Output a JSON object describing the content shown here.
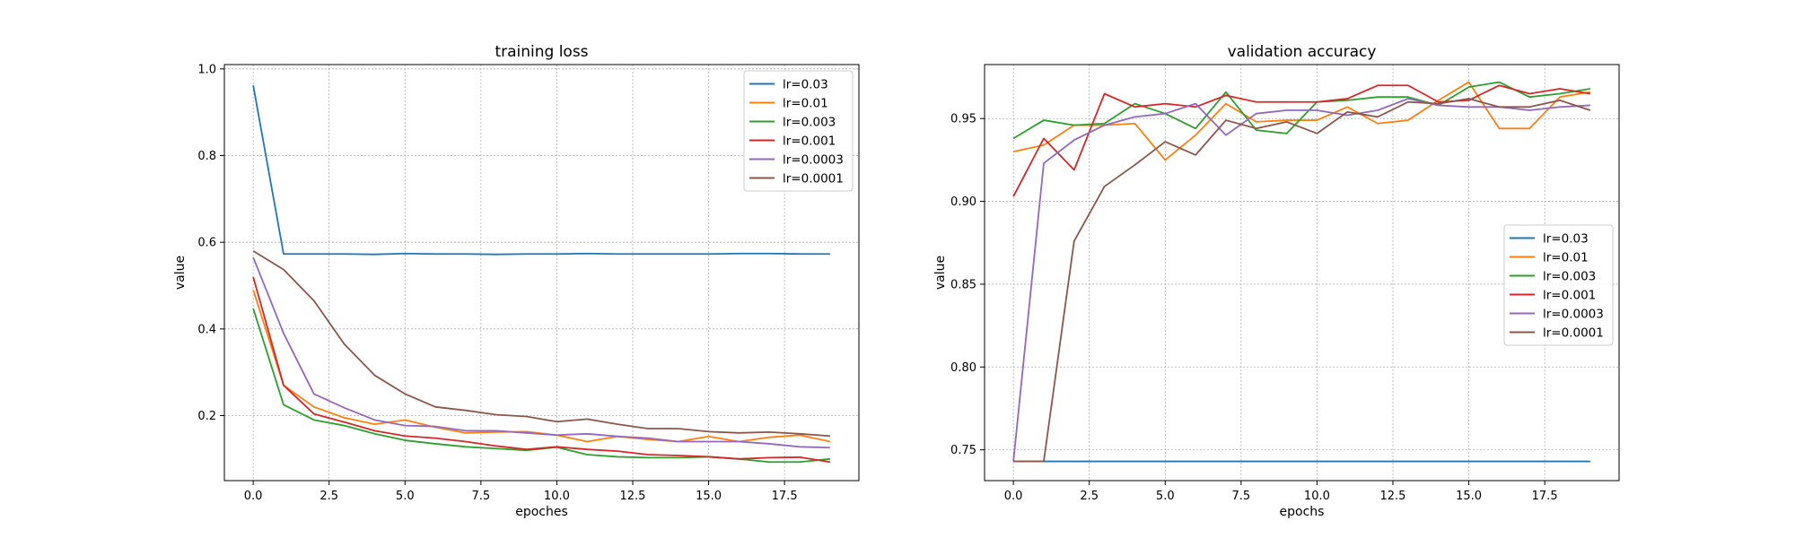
{
  "chart_data": [
    {
      "type": "line",
      "title": "training loss",
      "xlabel": "epoches",
      "ylabel": "value",
      "xlim": [
        -0.95,
        19.95
      ],
      "ylim": [
        0.05,
        1.01
      ],
      "xticks": [
        0.0,
        2.5,
        5.0,
        7.5,
        10.0,
        12.5,
        15.0,
        17.5
      ],
      "xtick_labels": [
        "0.0",
        "2.5",
        "5.0",
        "7.5",
        "10.0",
        "12.5",
        "15.0",
        "17.5"
      ],
      "yticks": [
        0.2,
        0.4,
        0.6,
        0.8,
        1.0
      ],
      "ytick_labels": [
        "0.2",
        "0.4",
        "0.6",
        "0.8",
        "1.0"
      ],
      "grid": true,
      "legend_position": "upper-right",
      "x": [
        0,
        1,
        2,
        3,
        4,
        5,
        6,
        7,
        8,
        9,
        10,
        11,
        12,
        13,
        14,
        15,
        16,
        17,
        18,
        19
      ],
      "series": [
        {
          "name": "lr=0.03",
          "color": "#1f77b4",
          "values": [
            0.962,
            0.573,
            0.573,
            0.573,
            0.572,
            0.574,
            0.573,
            0.573,
            0.572,
            0.573,
            0.573,
            0.574,
            0.573,
            0.573,
            0.573,
            0.573,
            0.574,
            0.574,
            0.573,
            0.573
          ]
        },
        {
          "name": "lr=0.01",
          "color": "#ff7f0e",
          "values": [
            0.49,
            0.27,
            0.22,
            0.195,
            0.18,
            0.19,
            0.173,
            0.16,
            0.162,
            0.163,
            0.155,
            0.14,
            0.152,
            0.145,
            0.14,
            0.152,
            0.14,
            0.15,
            0.155,
            0.14
          ]
        },
        {
          "name": "lr=0.003",
          "color": "#2ca02c",
          "values": [
            0.447,
            0.225,
            0.19,
            0.177,
            0.158,
            0.143,
            0.135,
            0.128,
            0.124,
            0.12,
            0.127,
            0.11,
            0.105,
            0.103,
            0.103,
            0.105,
            0.1,
            0.093,
            0.093,
            0.1
          ]
        },
        {
          "name": "lr=0.001",
          "color": "#d62728",
          "values": [
            0.52,
            0.27,
            0.204,
            0.185,
            0.165,
            0.153,
            0.148,
            0.14,
            0.13,
            0.122,
            0.128,
            0.122,
            0.118,
            0.11,
            0.108,
            0.105,
            0.1,
            0.103,
            0.104,
            0.093
          ]
        },
        {
          "name": "lr=0.0003",
          "color": "#9467bd",
          "values": [
            0.565,
            0.39,
            0.25,
            0.218,
            0.19,
            0.177,
            0.175,
            0.165,
            0.165,
            0.16,
            0.155,
            0.158,
            0.152,
            0.148,
            0.14,
            0.14,
            0.14,
            0.135,
            0.128,
            0.126
          ]
        },
        {
          "name": "lr=0.0001",
          "color": "#8c564b",
          "values": [
            0.58,
            0.537,
            0.465,
            0.365,
            0.293,
            0.25,
            0.22,
            0.212,
            0.202,
            0.198,
            0.186,
            0.192,
            0.18,
            0.17,
            0.17,
            0.163,
            0.16,
            0.162,
            0.158,
            0.153
          ]
        }
      ]
    },
    {
      "type": "line",
      "title": "validation accuracy",
      "xlabel": "epochs",
      "ylabel": "value",
      "xlim": [
        -0.95,
        19.95
      ],
      "ylim": [
        0.7314,
        0.9826
      ],
      "xticks": [
        0.0,
        2.5,
        5.0,
        7.5,
        10.0,
        12.5,
        15.0,
        17.5
      ],
      "xtick_labels": [
        "0.0",
        "2.5",
        "5.0",
        "7.5",
        "10.0",
        "12.5",
        "15.0",
        "17.5"
      ],
      "yticks": [
        0.75,
        0.8,
        0.85,
        0.9,
        0.95
      ],
      "ytick_labels": [
        "0.75",
        "0.80",
        "0.85",
        "0.90",
        "0.95"
      ],
      "grid": true,
      "legend_position": "center-right",
      "x": [
        0,
        1,
        2,
        3,
        4,
        5,
        6,
        7,
        8,
        9,
        10,
        11,
        12,
        13,
        14,
        15,
        16,
        17,
        18,
        19
      ],
      "series": [
        {
          "name": "lr=0.03",
          "color": "#1f77b4",
          "values": [
            0.743,
            0.743,
            0.743,
            0.743,
            0.743,
            0.743,
            0.743,
            0.743,
            0.743,
            0.743,
            0.743,
            0.743,
            0.743,
            0.743,
            0.743,
            0.743,
            0.743,
            0.743,
            0.743,
            0.743
          ]
        },
        {
          "name": "lr=0.01",
          "color": "#ff7f0e",
          "values": [
            0.93,
            0.934,
            0.946,
            0.946,
            0.947,
            0.925,
            0.94,
            0.959,
            0.948,
            0.949,
            0.949,
            0.957,
            0.947,
            0.949,
            0.961,
            0.972,
            0.944,
            0.944,
            0.963,
            0.966
          ]
        },
        {
          "name": "lr=0.003",
          "color": "#2ca02c",
          "values": [
            0.938,
            0.949,
            0.946,
            0.947,
            0.959,
            0.953,
            0.944,
            0.966,
            0.943,
            0.941,
            0.96,
            0.961,
            0.963,
            0.963,
            0.958,
            0.969,
            0.972,
            0.963,
            0.965,
            0.968
          ]
        },
        {
          "name": "lr=0.001",
          "color": "#d62728",
          "values": [
            0.903,
            0.938,
            0.919,
            0.965,
            0.957,
            0.959,
            0.957,
            0.964,
            0.96,
            0.96,
            0.96,
            0.962,
            0.97,
            0.97,
            0.96,
            0.961,
            0.97,
            0.965,
            0.968,
            0.965
          ]
        },
        {
          "name": "lr=0.0003",
          "color": "#9467bd",
          "values": [
            0.743,
            0.923,
            0.937,
            0.946,
            0.951,
            0.953,
            0.959,
            0.94,
            0.953,
            0.955,
            0.955,
            0.952,
            0.955,
            0.962,
            0.958,
            0.957,
            0.957,
            0.955,
            0.957,
            0.958
          ]
        },
        {
          "name": "lr=0.0001",
          "color": "#8c564b",
          "values": [
            0.743,
            0.743,
            0.876,
            0.909,
            0.922,
            0.936,
            0.928,
            0.949,
            0.944,
            0.948,
            0.941,
            0.954,
            0.951,
            0.96,
            0.959,
            0.962,
            0.957,
            0.957,
            0.961,
            0.955
          ]
        }
      ]
    }
  ]
}
